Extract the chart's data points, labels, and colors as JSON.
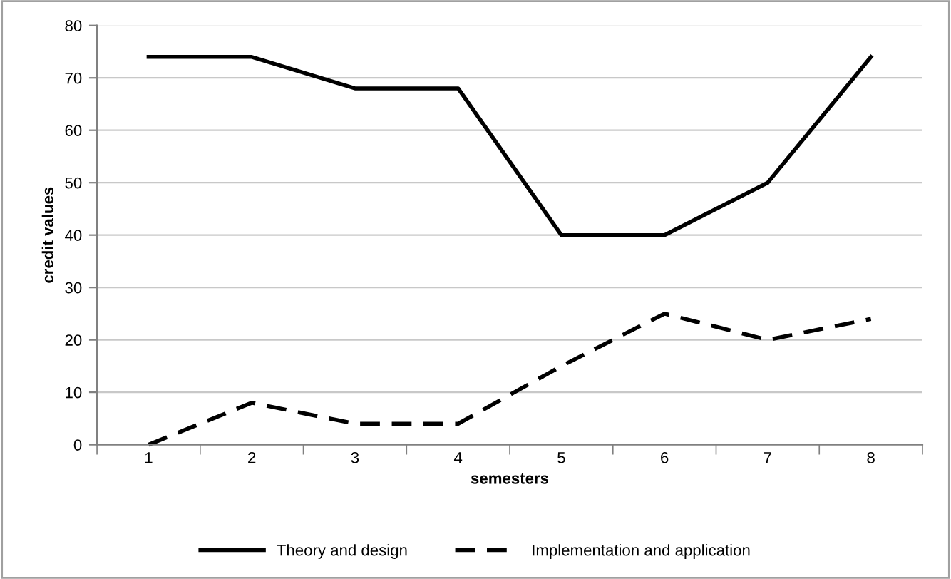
{
  "chart_data": {
    "type": "line",
    "xlabel": "semesters",
    "ylabel": "credit values",
    "categories": [
      "1",
      "2",
      "3",
      "4",
      "5",
      "6",
      "7",
      "8"
    ],
    "series": [
      {
        "name": "Theory and design",
        "color": "#000000",
        "line_style": "solid",
        "values": [
          74,
          74,
          68,
          68,
          40,
          40,
          50,
          74
        ]
      },
      {
        "name": "Implementation and application",
        "color": "#000000",
        "line_style": "dashed",
        "values": [
          0,
          8,
          4,
          4,
          15,
          25,
          20,
          24
        ]
      }
    ],
    "ylim": [
      0,
      80
    ],
    "yticks": [
      0,
      10,
      20,
      30,
      40,
      50,
      60,
      70,
      80
    ],
    "grid": "y",
    "legend": "bottom",
    "marker": "none"
  }
}
